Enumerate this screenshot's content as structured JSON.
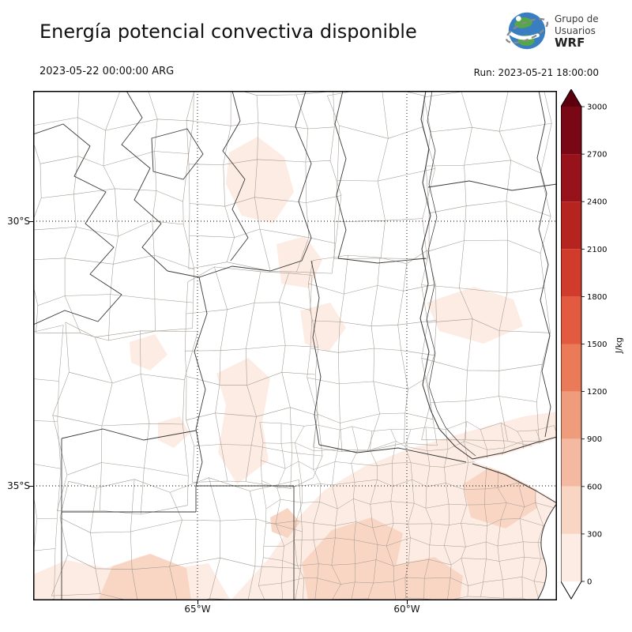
{
  "header": {
    "title": "Energía potencial convectiva disponible",
    "valid_time": "2023-05-22 00:00:00 ARG",
    "run_label": "Run: 2023-05-21 18:00:00",
    "logo": {
      "line1": "Grupo de",
      "line2": "Usuarios",
      "line3": "WRF"
    }
  },
  "map": {
    "x_tick_labels": [
      "65°W",
      "60°W"
    ],
    "y_tick_labels": [
      "30°S",
      "35°S"
    ]
  },
  "colorbar": {
    "unit": "J/kg",
    "tick_labels": [
      "0",
      "300",
      "600",
      "900",
      "1200",
      "1500",
      "1800",
      "2100",
      "2400",
      "2700",
      "3000"
    ],
    "band_colors": [
      "#fdece3",
      "#f9d6c4",
      "#f4b9a0",
      "#ef9c7d",
      "#ea7a58",
      "#e25a3f",
      "#d13b2b",
      "#b62420",
      "#97121a",
      "#7a0715"
    ],
    "over_color": "#5c000e",
    "under_color": "#ffffff"
  },
  "chart_data": {
    "type": "heatmap",
    "title": "Energía potencial convectiva disponible",
    "units": "J/kg",
    "colorbar_ticks": [
      0,
      300,
      600,
      900,
      1200,
      1500,
      1800,
      2100,
      2400,
      2700,
      3000
    ],
    "lat_gridlines": [
      "30°S",
      "35°S"
    ],
    "lon_gridlines": [
      "65°W",
      "60°W"
    ],
    "valid_time": "2023-05-22 00:00:00 ARG",
    "model_run": "2023-05-21 18:00:00",
    "shading_summary": [
      {
        "region": "Buenos Aires, La Pampa and southern Santa Fe/Córdoba (southeast of domain)",
        "value_range": [
          0,
          600
        ]
      },
      {
        "region": "scattered patches over central and northeastern provinces",
        "value_range": [
          0,
          300
        ]
      },
      {
        "region": "remainder of domain",
        "value_range": [
          0,
          0
        ]
      }
    ]
  }
}
